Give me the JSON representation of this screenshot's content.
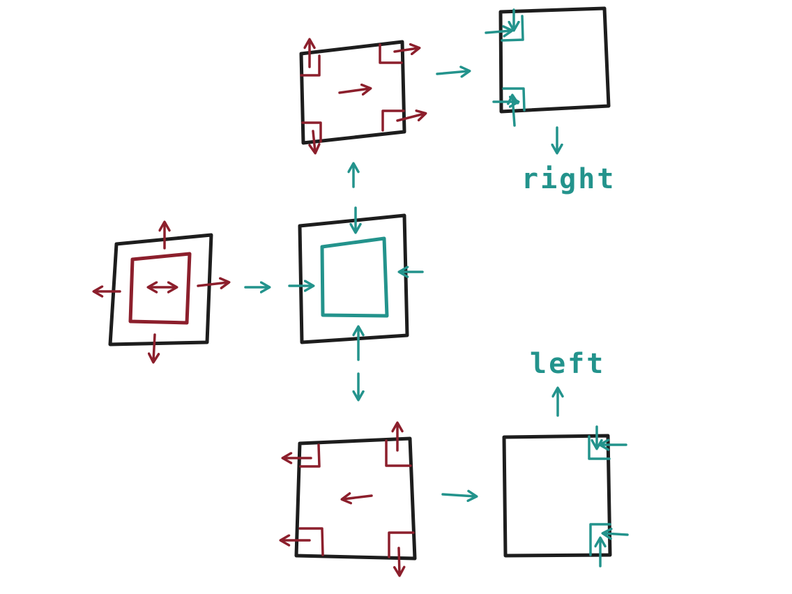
{
  "labels": {
    "right_label": "right",
    "left_label": "left"
  },
  "colors": {
    "box_outline": "#1d1d1d",
    "expand_marks": "#8c1f2c",
    "shrink_marks": "#23938c",
    "background": "#ffffff"
  }
}
